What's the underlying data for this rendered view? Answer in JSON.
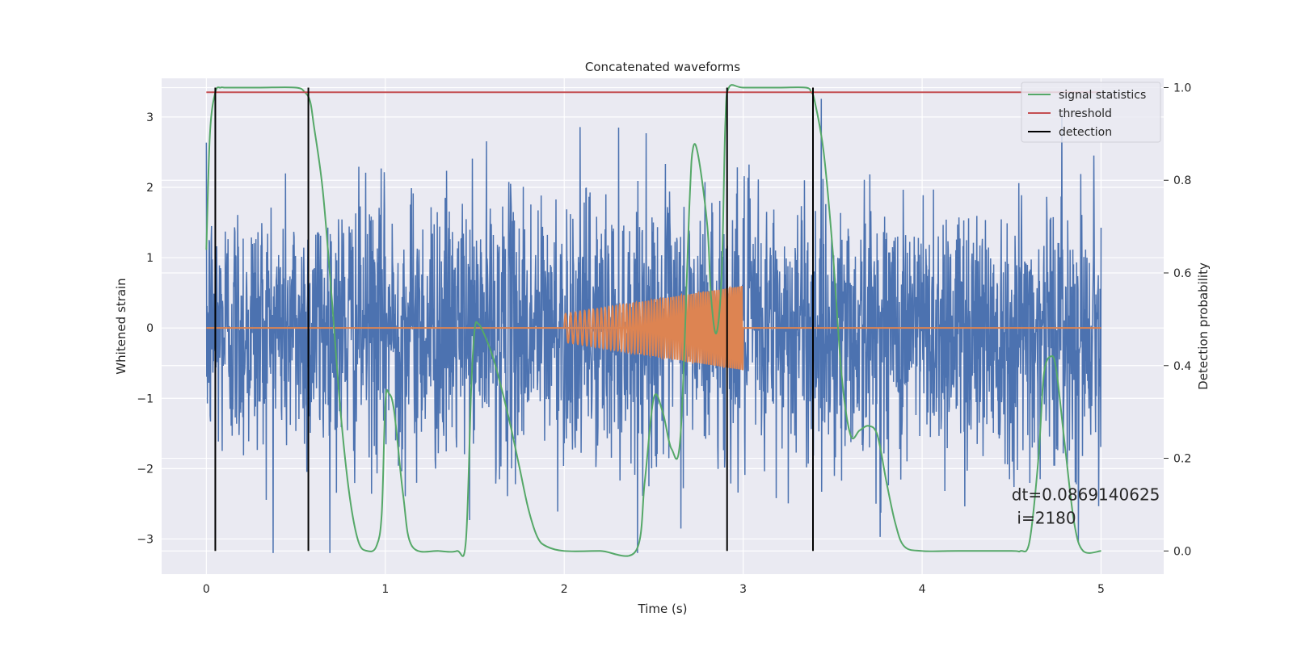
{
  "chart_data": {
    "type": "line",
    "title": "Concatenated waveforms",
    "xlabel": "Time (s)",
    "ylabel": "Whitened strain",
    "ylabel_right": "Detection probability",
    "xlim": [
      -0.25,
      5.35
    ],
    "ylim": [
      -3.5,
      3.55
    ],
    "ylim_right": [
      -0.05,
      1.02
    ],
    "xticks": [
      0,
      1,
      2,
      3,
      4,
      5
    ],
    "xtick_labels": [
      "0",
      "1",
      "2",
      "3",
      "4",
      "5"
    ],
    "yticks": [
      -3,
      -2,
      -1,
      0,
      1,
      2,
      3
    ],
    "ytick_labels": [
      "−3",
      "−2",
      "−1",
      "0",
      "1",
      "2",
      "3"
    ],
    "yticks_right": [
      0.0,
      0.2,
      0.4,
      0.6,
      0.8,
      1.0
    ],
    "ytick_labels_right": [
      "0.0",
      "0.2",
      "0.4",
      "0.6",
      "0.8",
      "1.0"
    ],
    "grid": true,
    "legend_position": "top-right",
    "legend": [
      {
        "name": "signal statistics",
        "color": "#55a868"
      },
      {
        "name": "threshold",
        "color": "#c44e52"
      },
      {
        "name": "detection",
        "color": "#000000"
      }
    ],
    "colors": {
      "strain": "#4c72b0",
      "template": "#dd8452",
      "signal_statistics": "#55a868",
      "threshold": "#c44e52",
      "detection": "#000000",
      "background": "#eaeaf2",
      "grid": "#ffffff"
    },
    "series": [
      {
        "axis": "left",
        "kind": "noise",
        "time_range": [
          0,
          5
        ],
        "amplitude_typical": 1.0,
        "peaks_max": [
          3.4,
          3.0,
          3.1,
          3.4
        ],
        "peaks_min": [
          -3.2,
          -3.05,
          -2.9,
          -2.8
        ]
      },
      {
        "axis": "left",
        "kind": "chirp",
        "time_range": [
          2.0,
          3.0
        ],
        "amplitude_start": 0.2,
        "amplitude_end": 0.6,
        "cycles": 62
      },
      {
        "name": "signal statistics",
        "axis": "right",
        "x": [
          0.0,
          0.02,
          0.05,
          0.08,
          0.1,
          0.15,
          0.3,
          0.5,
          0.55,
          0.58,
          0.6,
          0.65,
          0.7,
          0.75,
          0.8,
          0.85,
          0.9,
          0.95,
          0.98,
          1.0,
          1.02,
          1.05,
          1.1,
          1.15,
          1.3,
          1.4,
          1.45,
          1.48,
          1.5,
          1.52,
          1.55,
          1.6,
          1.65,
          1.7,
          1.75,
          1.8,
          1.85,
          1.9,
          2.0,
          2.2,
          2.4,
          2.45,
          2.5,
          2.55,
          2.6,
          2.65,
          2.7,
          2.72,
          2.75,
          2.8,
          2.82,
          2.85,
          2.88,
          2.9,
          2.92,
          3.0,
          3.2,
          3.35,
          3.38,
          3.4,
          3.45,
          3.5,
          3.55,
          3.6,
          3.65,
          3.7,
          3.75,
          3.8,
          3.85,
          3.9,
          4.0,
          4.2,
          4.5,
          4.55,
          4.6,
          4.65,
          4.68,
          4.72,
          4.75,
          4.8,
          4.85,
          4.9,
          5.0
        ],
        "y": [
          0.65,
          0.9,
          0.99,
          1.0,
          1.0,
          1.0,
          1.0,
          1.0,
          0.99,
          0.97,
          0.92,
          0.78,
          0.55,
          0.3,
          0.12,
          0.02,
          0.0,
          0.01,
          0.08,
          0.32,
          0.34,
          0.3,
          0.12,
          0.01,
          0.0,
          0.0,
          0.02,
          0.35,
          0.48,
          0.49,
          0.47,
          0.42,
          0.35,
          0.27,
          0.18,
          0.09,
          0.03,
          0.01,
          0.0,
          0.0,
          0.0,
          0.15,
          0.33,
          0.3,
          0.22,
          0.25,
          0.75,
          0.87,
          0.85,
          0.7,
          0.55,
          0.47,
          0.6,
          0.92,
          1.0,
          1.0,
          1.0,
          1.0,
          0.99,
          0.97,
          0.86,
          0.65,
          0.38,
          0.25,
          0.26,
          0.27,
          0.25,
          0.15,
          0.06,
          0.01,
          0.0,
          0.0,
          0.0,
          0.0,
          0.02,
          0.2,
          0.38,
          0.42,
          0.39,
          0.22,
          0.06,
          0.0,
          0.0
        ]
      },
      {
        "name": "threshold",
        "axis": "right",
        "x": [
          0.0,
          5.0
        ],
        "y": [
          0.99,
          0.99
        ]
      },
      {
        "name": "detection",
        "axis": "right",
        "kind": "vlines",
        "x": [
          0.05,
          0.57,
          2.91,
          3.39
        ],
        "y_range": [
          0.0,
          1.0
        ]
      }
    ],
    "annotations": [
      {
        "text": "dt=0.0869140625",
        "x": 4.5,
        "y": -2.45
      },
      {
        "text": "i=2180",
        "x": 4.53,
        "y": -2.78
      }
    ]
  }
}
